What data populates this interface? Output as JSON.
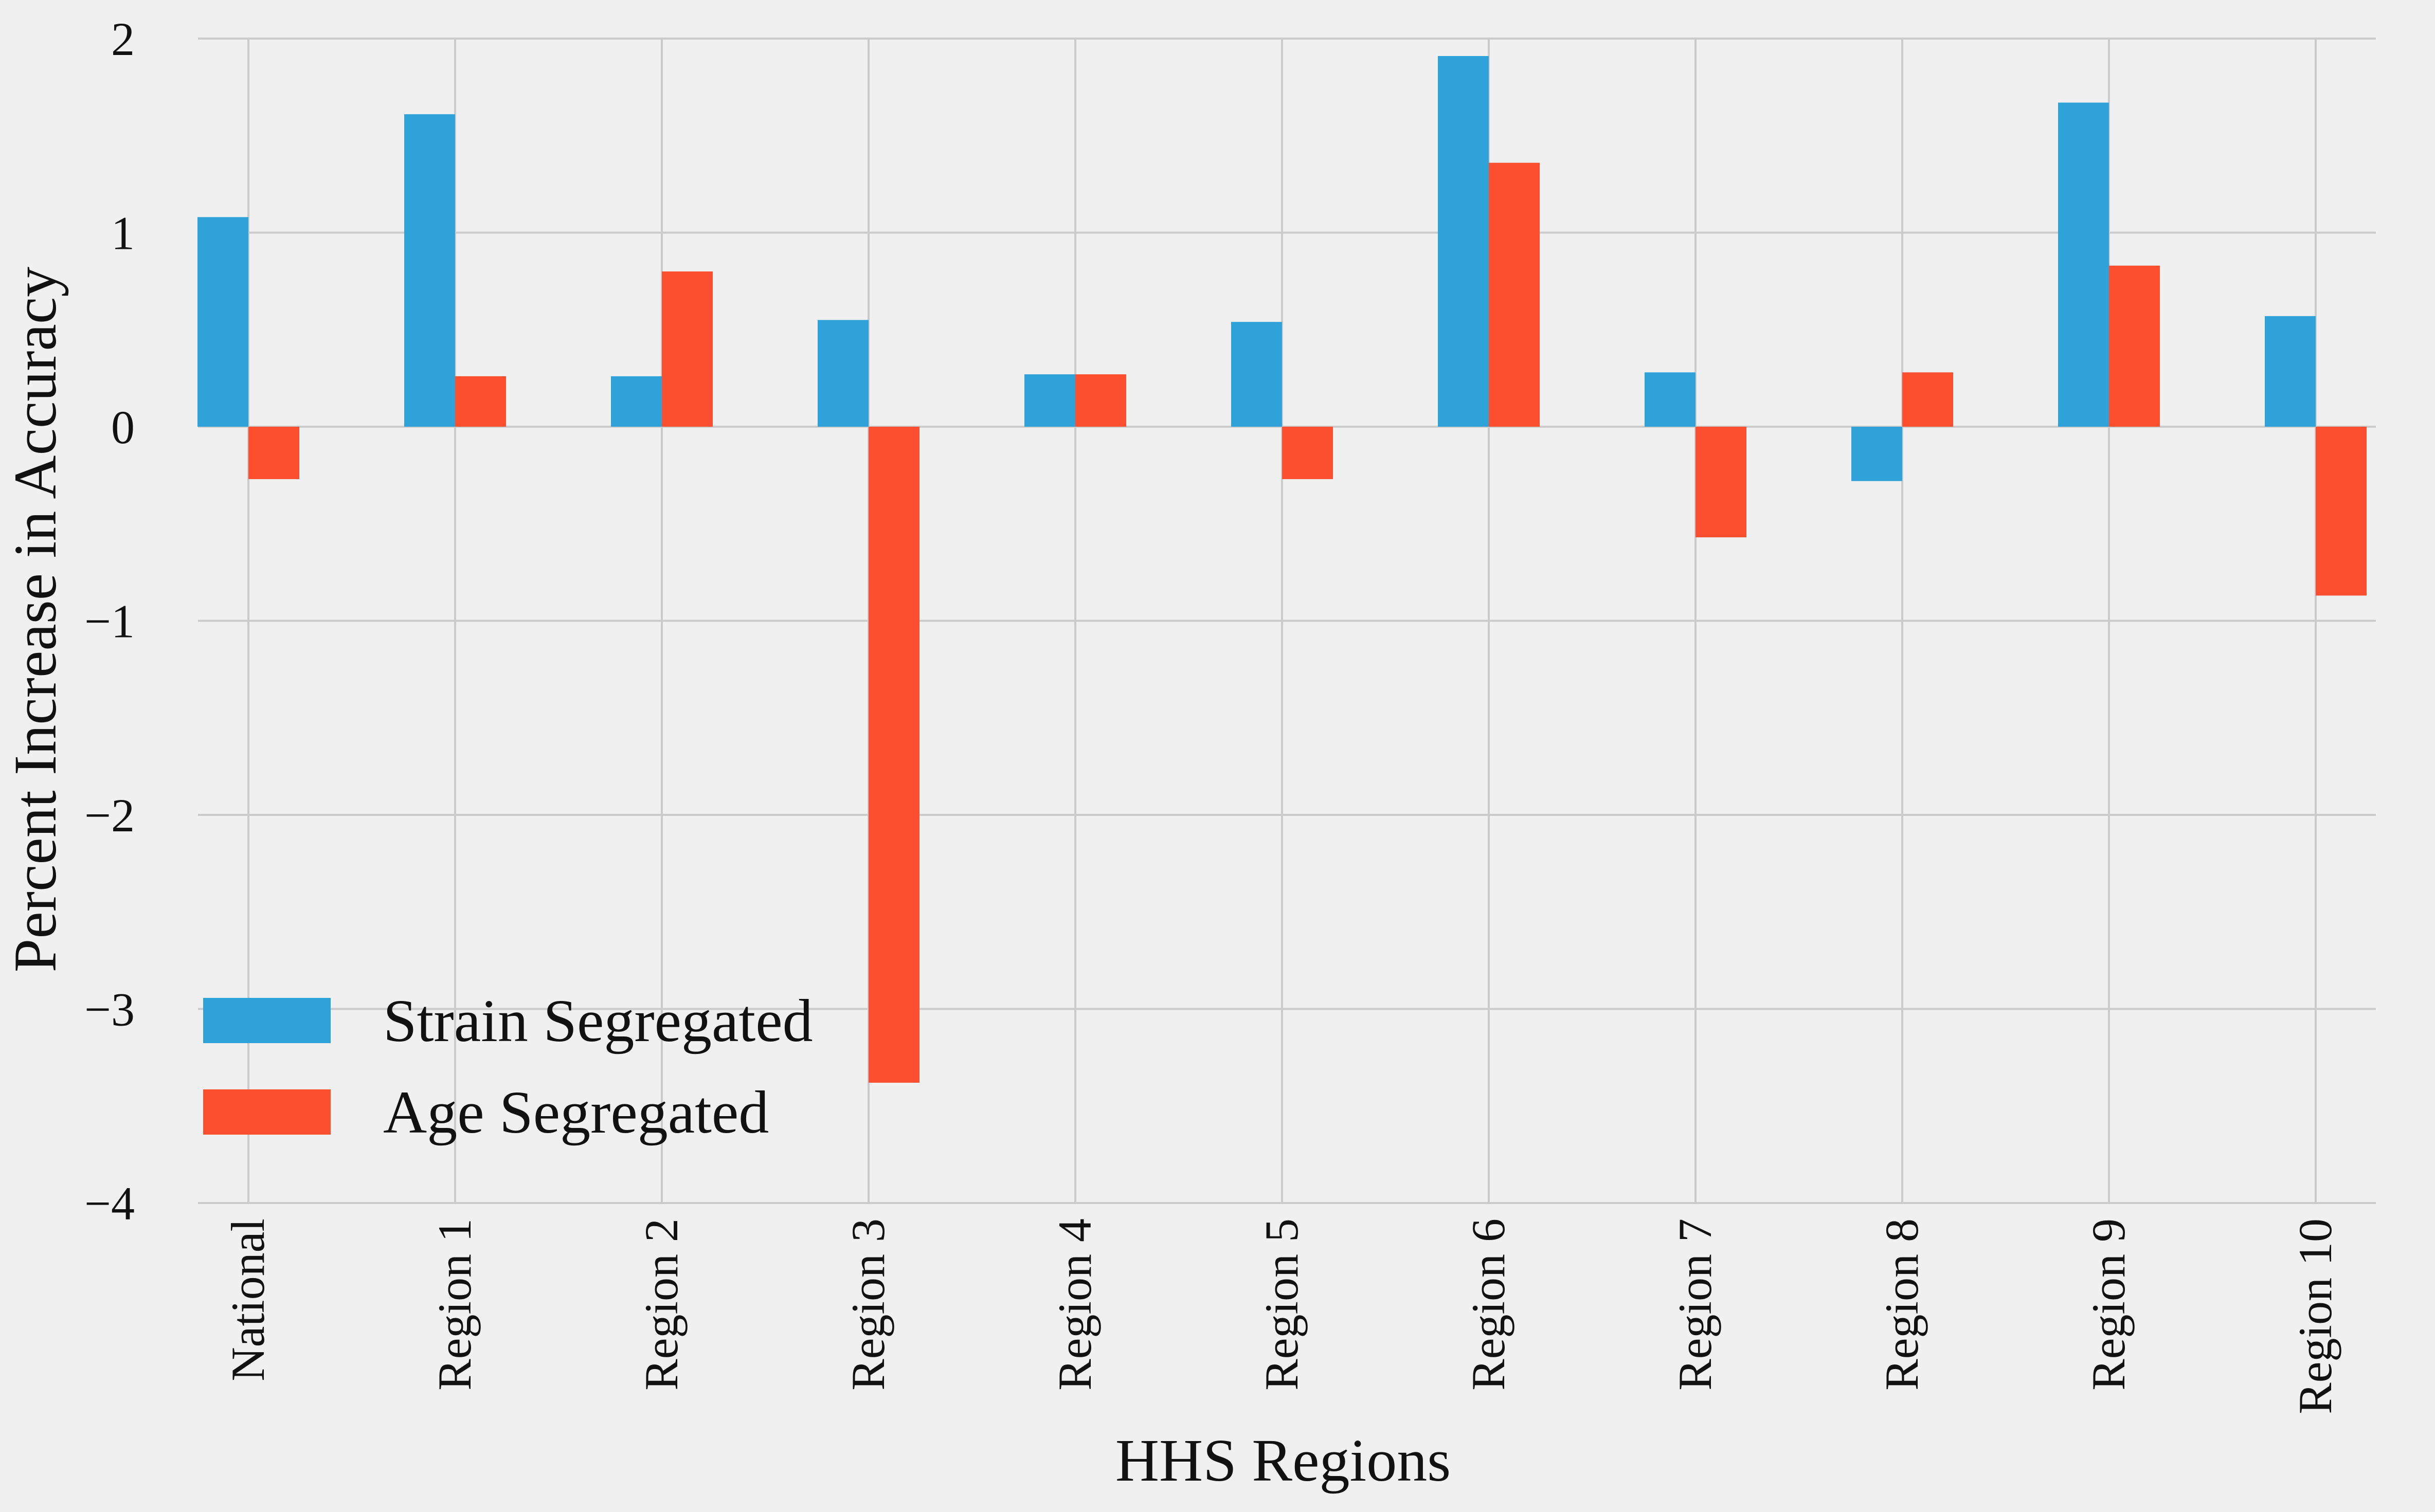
{
  "chart_data": {
    "type": "bar",
    "xlabel": "HHS Regions",
    "ylabel": "Percent Increase in Accuracy",
    "ylim": [
      -4,
      2
    ],
    "yticks": [
      -4,
      -3,
      -2,
      -1,
      0,
      1,
      2
    ],
    "ytick_labels": [
      "−4",
      "−3",
      "−2",
      "−1",
      "0",
      "1",
      "2"
    ],
    "categories": [
      "National",
      "Region 1",
      "Region 2",
      "Region 3",
      "Region 4",
      "Region 5",
      "Region 6",
      "Region 7",
      "Region 8",
      "Region 9",
      "Region 10"
    ],
    "grid": true,
    "legend_position": "bottom-left",
    "series": [
      {
        "name": "Strain Segregated",
        "color": "#30a2da",
        "values": [
          1.08,
          1.61,
          0.26,
          0.55,
          0.27,
          0.54,
          1.91,
          0.28,
          -0.28,
          1.67,
          0.57
        ]
      },
      {
        "name": "Age Segregated",
        "color": "#fc4f30",
        "values": [
          -0.27,
          0.26,
          0.8,
          -3.38,
          0.27,
          -0.27,
          1.36,
          -0.57,
          0.28,
          0.83,
          -0.87
        ]
      }
    ]
  }
}
